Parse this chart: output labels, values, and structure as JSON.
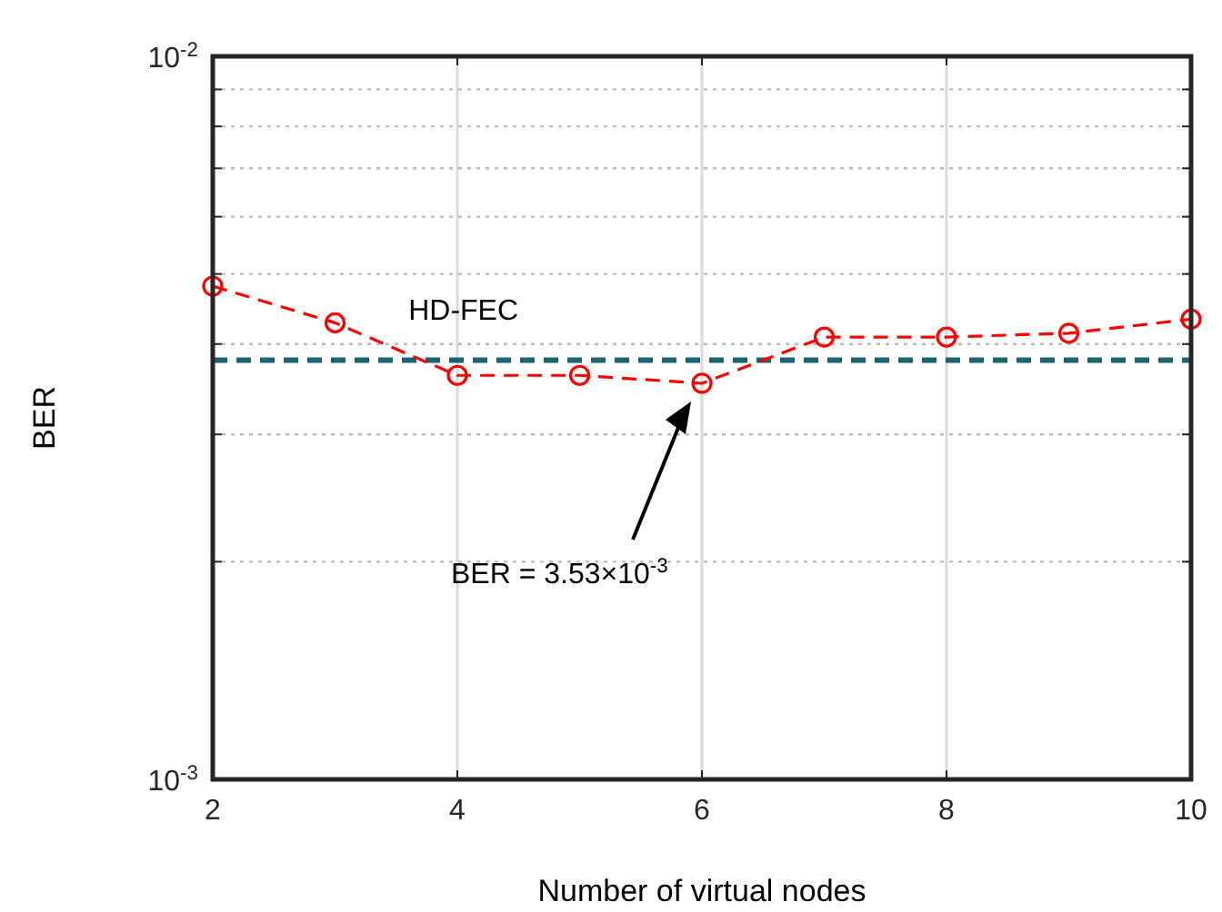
{
  "chart_data": {
    "type": "line",
    "xlabel": "Number of virtual nodes",
    "ylabel": "BER",
    "x": [
      2,
      3,
      4,
      5,
      6,
      7,
      8,
      9,
      10
    ],
    "series": [
      {
        "color": "#ff0000",
        "values": [
          0.00481,
          0.00428,
          0.00362,
          0.00362,
          0.00353,
          0.00409,
          0.00409,
          0.00414,
          0.00433
        ],
        "marker": "circle",
        "line_style": "dashed"
      }
    ],
    "xlim": [
      2,
      10
    ],
    "xticks": [
      2,
      4,
      6,
      8,
      10
    ],
    "ylim": [
      0.001,
      0.01
    ],
    "yticks": [
      {
        "value": 0.001,
        "label": "10$^{-3}$"
      },
      {
        "value": 0.002,
        "label": null
      },
      {
        "value": 0.003,
        "label": null
      },
      {
        "value": 0.004,
        "label": null
      },
      {
        "value": 0.005,
        "label": null
      },
      {
        "value": 0.006,
        "label": null
      },
      {
        "value": 0.007,
        "label": null
      },
      {
        "value": 0.008,
        "label": null
      },
      {
        "value": 0.009,
        "label": null
      },
      {
        "value": 0.01,
        "label": "10$^{-2}$"
      }
    ],
    "log": "y",
    "grid": true,
    "ref_lines": [
      {
        "axis": "y",
        "value": 0.0038,
        "label": "HD-FEC",
        "color": "#1a6470",
        "line_style": "dashed"
      }
    ],
    "annotations": [
      "BER = 3.53×10$^{-3}$"
    ]
  }
}
